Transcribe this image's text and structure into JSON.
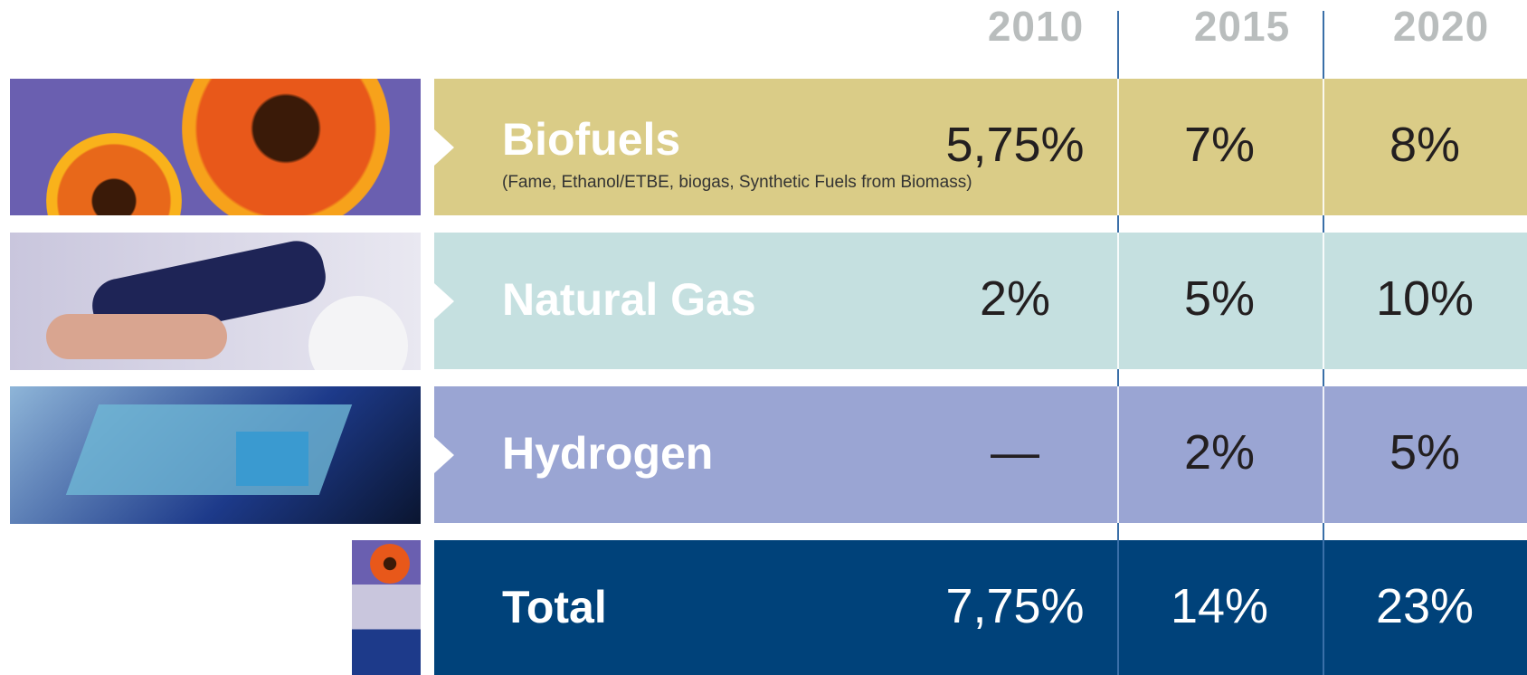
{
  "columns": [
    "2010",
    "2015",
    "2020"
  ],
  "rows": [
    {
      "label": "Biofuels",
      "note": "(Fame, Ethanol/ETBE, biogas, Synthetic Fuels from Biomass)",
      "values": [
        "5,75%",
        "7%",
        "8%"
      ]
    },
    {
      "label": "Natural Gas",
      "values": [
        "2%",
        "5%",
        "10%"
      ]
    },
    {
      "label": "Hydrogen",
      "values": [
        "—",
        "2%",
        "5%"
      ]
    },
    {
      "label": "Total",
      "values": [
        "7,75%",
        "14%",
        "23%"
      ]
    }
  ]
}
